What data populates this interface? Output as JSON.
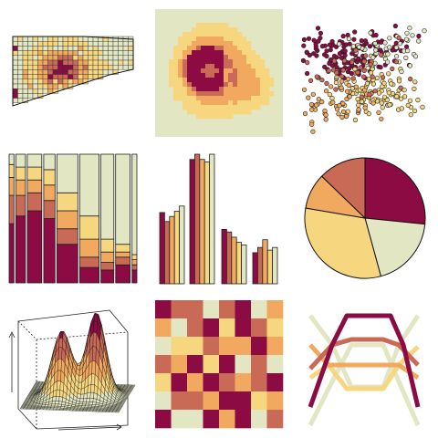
{
  "palette": {
    "c1": "#8b0b42",
    "c2": "#c86a56",
    "c3": "#f0a95f",
    "c4": "#f6d67e",
    "c5": "#e2e6c2",
    "outline": "#222222"
  },
  "panels": [
    {
      "name": "choropleth-map-panel",
      "kind": "map"
    },
    {
      "name": "density-raster-panel",
      "kind": "raster"
    },
    {
      "name": "scatter-panel",
      "kind": "scatter"
    },
    {
      "name": "stacked-bar-panel",
      "kind": "stacked-bar"
    },
    {
      "name": "grouped-bar-panel",
      "kind": "grouped-bar"
    },
    {
      "name": "pie-panel",
      "kind": "pie"
    },
    {
      "name": "perspective-surface-panel",
      "kind": "surface"
    },
    {
      "name": "tile-grid-panel",
      "kind": "tiles"
    },
    {
      "name": "parallel-lines-panel",
      "kind": "lines"
    }
  ],
  "chart_data": [
    {
      "type": "pie",
      "slice_colors": [
        "c1",
        "c2",
        "c3",
        "c4",
        "c5"
      ],
      "values": [
        25,
        12,
        9,
        30,
        18
      ]
    },
    {
      "type": "bar",
      "stacked": true,
      "values": [
        [
          0.46,
          0.22,
          0.14,
          0.1,
          0.08
        ],
        [
          0.52,
          0.16,
          0.12,
          0.1,
          0.1
        ],
        [
          0.56,
          0.14,
          0.1,
          0.1,
          0.1
        ],
        [
          0.5,
          0.14,
          0.12,
          0.12,
          0.12
        ],
        [
          0.3,
          0.12,
          0.14,
          0.14,
          0.3
        ],
        [
          0.12,
          0.08,
          0.14,
          0.18,
          0.48
        ],
        [
          0.1,
          0.06,
          0.08,
          0.1,
          0.66
        ],
        [
          0.14,
          0.06,
          0.04,
          0.06,
          0.7
        ],
        [
          0.1,
          0.04,
          0.04,
          0.04,
          0.78
        ]
      ]
    },
    {
      "type": "bar",
      "groups": [
        [
          0.55,
          0.48,
          0.52,
          0.56,
          0.6
        ],
        [
          0.96,
          1.0,
          0.96,
          0.94,
          1.0
        ],
        [
          0.42,
          0.4,
          0.36,
          0.32,
          0.3
        ],
        [
          0.24,
          0.28,
          0.34,
          0.26,
          0.28
        ]
      ]
    },
    {
      "type": "heatmap",
      "rows": [
        [
          "c1",
          "c2",
          "c2",
          "c5",
          "c2",
          "c1",
          "c5",
          "c3"
        ],
        [
          "c3",
          "c5",
          "c2",
          "c1",
          "c4",
          "c1",
          "c2",
          "c4"
        ],
        [
          "c5",
          "c4",
          "c4",
          "c2",
          "c3",
          "c3",
          "c1",
          "c3"
        ],
        [
          "c2",
          "c3",
          "c1",
          "c4",
          "c1",
          "c5",
          "c2",
          "c5"
        ],
        [
          "c4",
          "c1",
          "c3",
          "c1",
          "c2",
          "c3",
          "c2",
          "c1"
        ],
        [
          "c5",
          "c2",
          "c2",
          "c3",
          "c1",
          "c1",
          "c4",
          "c3"
        ],
        [
          "c1",
          "c5",
          "c5",
          "c1",
          "c3",
          "c1",
          "c5",
          "c2"
        ]
      ]
    },
    {
      "type": "line",
      "series_colors": [
        "c1",
        "c2",
        "c3",
        "c4",
        "c5"
      ]
    }
  ]
}
